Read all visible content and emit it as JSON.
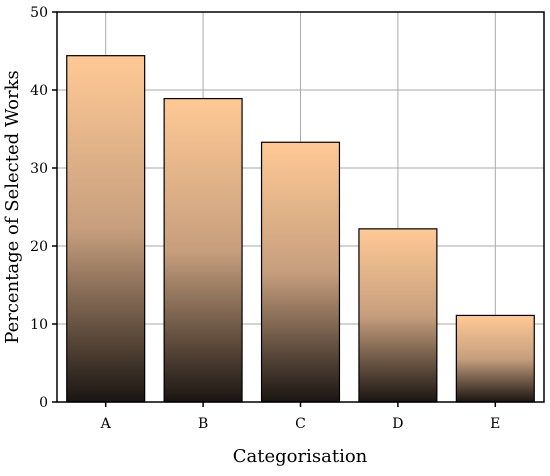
{
  "chart_data": {
    "type": "bar",
    "title": "",
    "xlabel": "Categorisation",
    "ylabel": "Percentage of Selected Works",
    "categories": [
      "A",
      "B",
      "C",
      "D",
      "E"
    ],
    "values": [
      44.4,
      38.9,
      33.3,
      22.2,
      11.1
    ],
    "ylim": [
      0,
      50
    ],
    "yticks": [
      "0",
      "10",
      "20",
      "30",
      "40",
      "50"
    ],
    "grid": true,
    "legend": "none",
    "colors": {
      "bar_top": "#FFC995",
      "bar_mid": "#C79F7E",
      "bar_bottom": "#1A1512",
      "bar_stroke": "#000000",
      "grid": "#A9A9A9",
      "axis": "#000000"
    }
  }
}
